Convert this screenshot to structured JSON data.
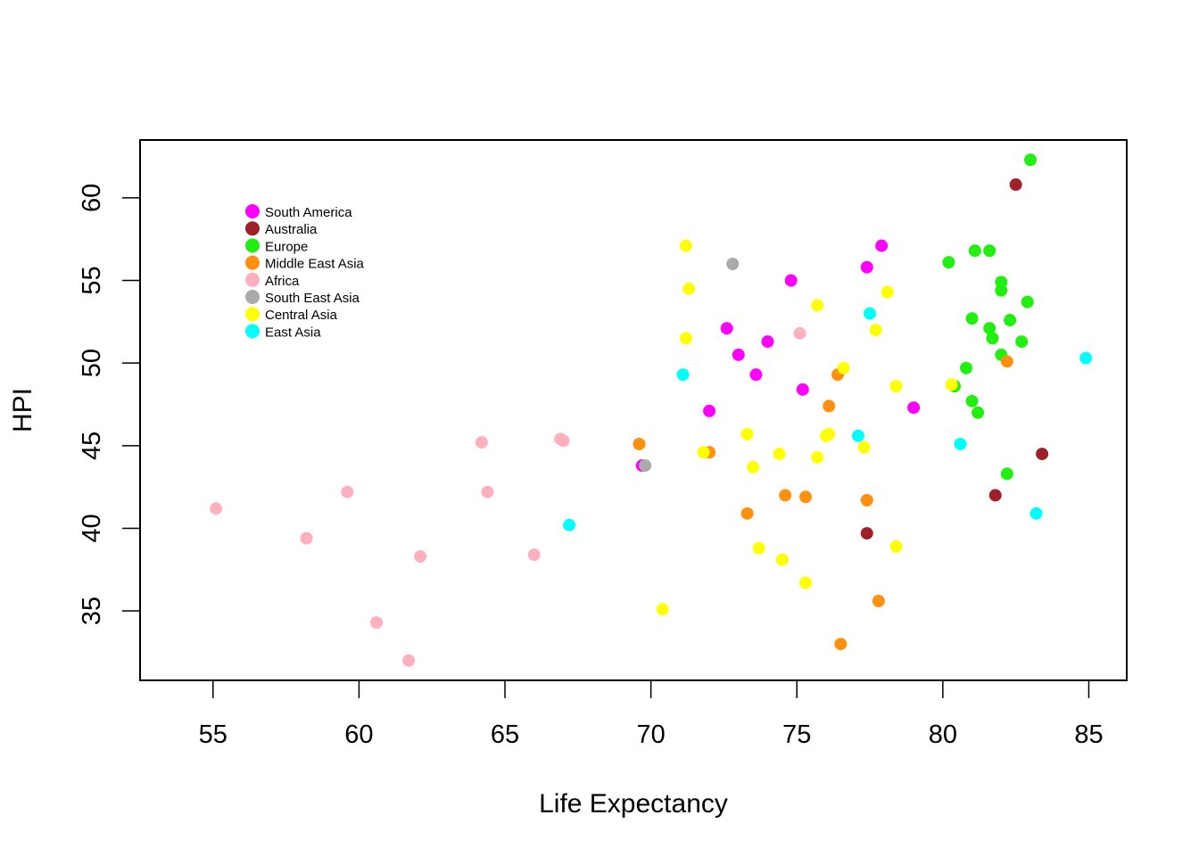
{
  "chart_data": {
    "type": "scatter",
    "title": "",
    "xlabel": "Life Expectancy",
    "ylabel": "HPI",
    "xlim": [
      52.5,
      86.3
    ],
    "ylim": [
      30.8,
      63.5
    ],
    "x_ticks": [
      55,
      60,
      65,
      70,
      75,
      80,
      85
    ],
    "y_ticks": [
      35,
      40,
      45,
      50,
      55,
      60
    ],
    "x_tick_labels": [
      "55",
      "60",
      "65",
      "70",
      "75",
      "80",
      "85"
    ],
    "y_tick_labels": [
      "35",
      "40",
      "45",
      "50",
      "55",
      "60"
    ],
    "grid": false,
    "legend_position": "top-left",
    "series": [
      {
        "name": "South America",
        "color": "#ff00ff",
        "points": [
          [
            69.7,
            43.8
          ],
          [
            72.0,
            47.1
          ],
          [
            72.6,
            52.1
          ],
          [
            73.0,
            50.5
          ],
          [
            73.6,
            49.3
          ],
          [
            74.0,
            51.3
          ],
          [
            74.8,
            55.0
          ],
          [
            75.2,
            48.4
          ],
          [
            77.4,
            55.8
          ],
          [
            77.9,
            57.1
          ],
          [
            79.0,
            47.3
          ]
        ]
      },
      {
        "name": "Australia",
        "color": "#a0202a",
        "points": [
          [
            77.4,
            39.7
          ],
          [
            81.8,
            42.0
          ],
          [
            82.5,
            60.8
          ],
          [
            83.4,
            44.5
          ]
        ]
      },
      {
        "name": "Europe",
        "color": "#22ee11",
        "points": [
          [
            80.2,
            56.1
          ],
          [
            80.4,
            48.6
          ],
          [
            80.8,
            49.7
          ],
          [
            81.0,
            52.7
          ],
          [
            81.0,
            47.7
          ],
          [
            81.1,
            56.8
          ],
          [
            81.2,
            47.0
          ],
          [
            81.6,
            56.8
          ],
          [
            81.6,
            52.1
          ],
          [
            81.7,
            51.5
          ],
          [
            82.0,
            54.9
          ],
          [
            82.0,
            54.4
          ],
          [
            82.0,
            50.5
          ],
          [
            82.2,
            43.3
          ],
          [
            82.3,
            52.6
          ],
          [
            82.7,
            51.3
          ],
          [
            82.9,
            53.7
          ],
          [
            83.0,
            62.3
          ]
        ]
      },
      {
        "name": "Middle East Asia",
        "color": "#ff9010",
        "points": [
          [
            69.6,
            45.1
          ],
          [
            72.0,
            44.6
          ],
          [
            73.3,
            40.9
          ],
          [
            74.6,
            42.0
          ],
          [
            75.3,
            41.9
          ],
          [
            76.1,
            47.4
          ],
          [
            76.4,
            49.3
          ],
          [
            76.5,
            33.0
          ],
          [
            77.4,
            41.7
          ],
          [
            77.8,
            35.6
          ],
          [
            82.2,
            50.1
          ]
        ]
      },
      {
        "name": "Africa",
        "color": "#ffb0be",
        "points": [
          [
            55.1,
            41.2
          ],
          [
            58.2,
            39.4
          ],
          [
            59.6,
            42.2
          ],
          [
            60.6,
            34.3
          ],
          [
            61.7,
            32.0
          ],
          [
            62.1,
            38.3
          ],
          [
            64.2,
            45.2
          ],
          [
            64.4,
            42.2
          ],
          [
            66.0,
            38.4
          ],
          [
            66.9,
            45.4
          ],
          [
            67.0,
            45.3
          ],
          [
            75.1,
            51.8
          ]
        ]
      },
      {
        "name": "South East Asia",
        "color": "#aaaaaa",
        "points": [
          [
            69.8,
            43.8
          ],
          [
            72.8,
            56.0
          ]
        ]
      },
      {
        "name": "Central Asia",
        "color": "#ffff00",
        "points": [
          [
            70.4,
            35.1
          ],
          [
            71.2,
            57.1
          ],
          [
            71.2,
            51.5
          ],
          [
            71.3,
            54.5
          ],
          [
            71.8,
            44.6
          ],
          [
            73.3,
            45.7
          ],
          [
            73.5,
            43.7
          ],
          [
            73.7,
            38.8
          ],
          [
            74.4,
            44.5
          ],
          [
            74.5,
            38.1
          ],
          [
            75.3,
            36.7
          ],
          [
            75.7,
            53.5
          ],
          [
            75.7,
            44.3
          ],
          [
            76.0,
            45.6
          ],
          [
            76.1,
            45.7
          ],
          [
            76.6,
            49.7
          ],
          [
            77.3,
            44.9
          ],
          [
            77.7,
            52.0
          ],
          [
            78.1,
            54.3
          ],
          [
            78.4,
            48.6
          ],
          [
            78.4,
            38.9
          ],
          [
            80.3,
            48.7
          ]
        ]
      },
      {
        "name": "East Asia",
        "color": "#00ffff",
        "points": [
          [
            67.2,
            40.2
          ],
          [
            71.1,
            49.3
          ],
          [
            77.1,
            45.6
          ],
          [
            77.5,
            53.0
          ],
          [
            80.6,
            45.1
          ],
          [
            83.2,
            40.9
          ],
          [
            84.9,
            50.3
          ]
        ]
      }
    ]
  }
}
